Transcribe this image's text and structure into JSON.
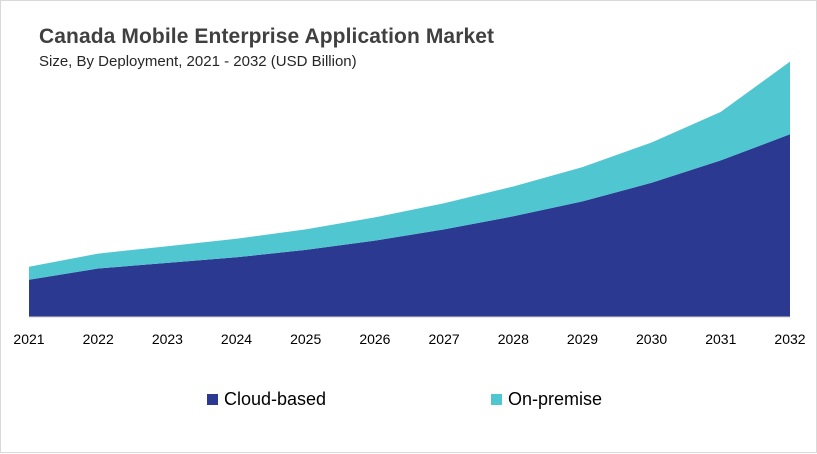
{
  "colors": {
    "cloud": "#2B3990",
    "onpremise": "#4FC6D0"
  },
  "chart_data": {
    "type": "area",
    "stacked": true,
    "title": "Canada Mobile Enterprise Application Market",
    "subtitle": "Size, By Deployment, 2021 - 2032 (USD Billion)",
    "x": [
      "2021",
      "2022",
      "2023",
      "2024",
      "2025",
      "2026",
      "2027",
      "2028",
      "2029",
      "2030",
      "2031",
      "2032"
    ],
    "series": [
      {
        "name": "Cloud-based",
        "color": "#2B3990",
        "values": [
          1.0,
          1.3,
          1.45,
          1.6,
          1.8,
          2.05,
          2.35,
          2.7,
          3.1,
          3.6,
          4.2,
          4.9
        ]
      },
      {
        "name": "On-premise",
        "color": "#4FC6D0",
        "values": [
          0.35,
          0.4,
          0.45,
          0.5,
          0.55,
          0.62,
          0.7,
          0.8,
          0.92,
          1.08,
          1.3,
          1.95
        ]
      }
    ],
    "ylim": [
      0,
      7.0
    ],
    "grid": false,
    "legend": "bottom"
  }
}
